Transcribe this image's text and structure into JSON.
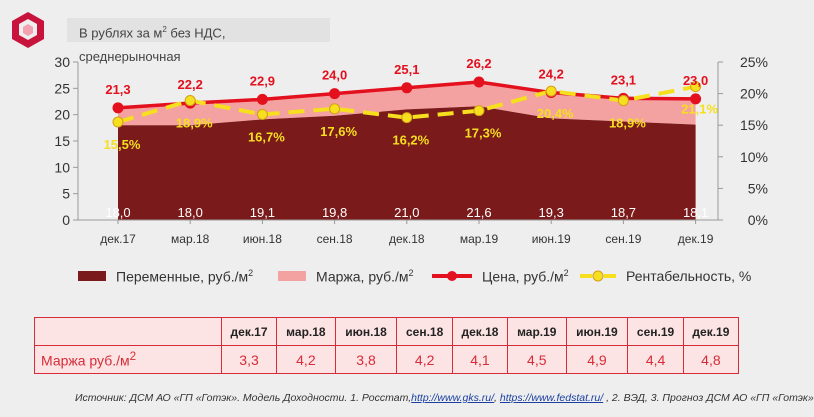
{
  "subtitle": {
    "prefix": "В рублях за м",
    "sup": "2",
    "suffix": " без НДС, среднерыночная"
  },
  "legend": {
    "variable": {
      "text": "Переменные, руб./м",
      "sup": "2"
    },
    "margin": {
      "text": "Маржа, руб./м",
      "sup": "2"
    },
    "price": {
      "text": "Цена, руб./м",
      "sup": "2"
    },
    "profitability": {
      "text": "Рентабельность, %"
    }
  },
  "colors": {
    "variable": "#7a1a1a",
    "margin": "#f4a1a1",
    "price": "#e3101e",
    "profitability": "#f5df1f",
    "accent": "#d62b38"
  },
  "chart_data": {
    "type": "area",
    "categories": [
      "дек.17",
      "мар.18",
      "июн.18",
      "сен.18",
      "дек.18",
      "мар.19",
      "июн.19",
      "сен.19",
      "дек.19"
    ],
    "variable": [
      18.0,
      18.0,
      19.1,
      19.8,
      21.0,
      21.6,
      19.3,
      18.7,
      18.1
    ],
    "variable_labels": [
      "18,0",
      "18,0",
      "19,1",
      "19,8",
      "21,0",
      "21,6",
      "19,3",
      "18,7",
      "18,1"
    ],
    "price": [
      21.3,
      22.2,
      22.9,
      24.0,
      25.1,
      26.2,
      24.2,
      23.1,
      23.0
    ],
    "price_labels": [
      "21,3",
      "22,2",
      "22,9",
      "24,0",
      "25,1",
      "26,2",
      "24,2",
      "23,1",
      "23,0"
    ],
    "profitability": [
      15.5,
      18.9,
      16.7,
      17.6,
      16.2,
      17.3,
      20.4,
      18.9,
      21.1
    ],
    "profitability_labels": [
      "15,5%",
      "18,9%",
      "16,7%",
      "17,6%",
      "16,2%",
      "17,3%",
      "20,4%",
      "18,9%",
      "21,1%"
    ],
    "y_left": {
      "min": 0,
      "max": 30,
      "ticks": [
        "0",
        "5",
        "10",
        "15",
        "20",
        "25",
        "30"
      ]
    },
    "y_right": {
      "min": 0,
      "max": 25,
      "ticks": [
        "0%",
        "5%",
        "10%",
        "15%",
        "20%",
        "25%"
      ]
    },
    "grid": false
  },
  "table": {
    "row_label": "Маржа руб./м",
    "row_label_sup": "2",
    "headers": [
      "дек.17",
      "мар.18",
      "июн.18",
      "сен.18",
      "дек.18",
      "мар.19",
      "июн.19",
      "сен.19",
      "дек.19"
    ],
    "values": [
      "3,3",
      "4,2",
      "3,8",
      "4,2",
      "4,1",
      "4,5",
      "4,9",
      "4,4",
      "4,8"
    ]
  },
  "source": {
    "text": "Источник: ДСМ АО «ГП «Готэк». Модель Доходности. 1. Росстат,",
    "link1": "http://www.gks.ru/",
    "sep": ", ",
    "link2": "https://www.fedstat.ru/",
    "tail": " , 2. ВЭД, 3. Прогноз ДСМ АО «ГП «Готэк»"
  }
}
